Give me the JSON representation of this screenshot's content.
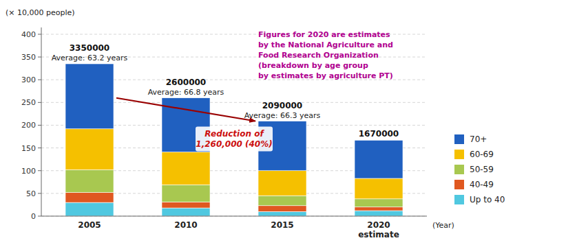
{
  "chart_data": {
    "type": "bar",
    "stacked": true,
    "categories": [
      "2005",
      "2010",
      "2015",
      "2020\nestimate"
    ],
    "series": [
      {
        "name": "Up to 40",
        "color": "#50c8e0",
        "values": [
          30,
          18,
          10,
          12
        ]
      },
      {
        "name": "40-49",
        "color": "#e05820",
        "values": [
          22,
          13,
          13,
          8
        ]
      },
      {
        "name": "50-59",
        "color": "#a8c850",
        "values": [
          50,
          38,
          22,
          18
        ]
      },
      {
        "name": "60-69",
        "color": "#f5c000",
        "values": [
          90,
          72,
          55,
          45
        ]
      },
      {
        "name": "70+",
        "color": "#2060c0",
        "values": [
          143,
          119,
          109,
          84
        ]
      }
    ],
    "totals": [
      335,
      260,
      209,
      167
    ],
    "total_labels": [
      "3350000",
      "2600000",
      "2090000",
      "1670000"
    ],
    "avg_labels": [
      "Average: 63.2 years",
      "Average: 66.8 years",
      "Average: 66.3 years",
      null
    ],
    "ylabel": "(× 10,000 people)",
    "xlabel": "(Year)",
    "ylim": [
      0,
      415
    ],
    "yticks": [
      0,
      50,
      100,
      150,
      200,
      250,
      300,
      350,
      400
    ],
    "grid": true,
    "legend": "lower right",
    "annotations": [
      "Reduction of",
      "1,260,000 (40%)"
    ],
    "note": "Figures for 2020 are estimates\nby the National Agriculture and\nFood Research Organization\n(breakdown by age group\nby estimates by agriculture PT)"
  }
}
